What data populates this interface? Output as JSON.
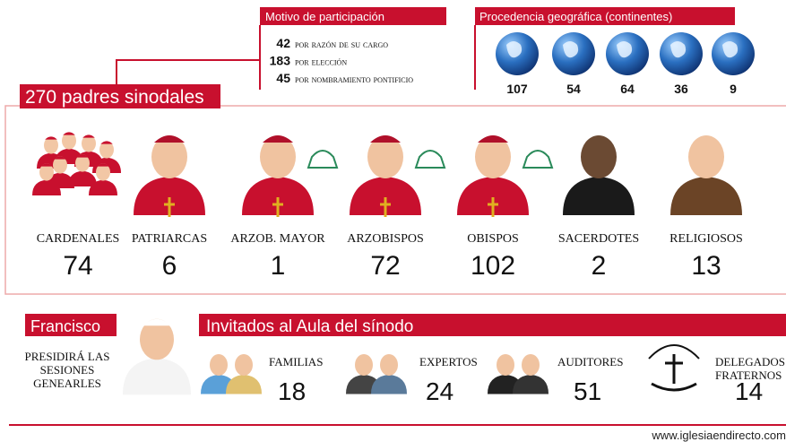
{
  "motivo": {
    "title": "Motivo de participación",
    "items": [
      {
        "number": 42,
        "label": "por razón de su cargo"
      },
      {
        "number": 183,
        "label": "por elección"
      },
      {
        "number": 45,
        "label": "por nombramiento pontificio"
      }
    ]
  },
  "procedencia": {
    "title": "Procedencia geográfica (continentes)",
    "values": [
      107,
      54,
      64,
      36,
      9
    ]
  },
  "padres": {
    "title": "270 padres sinodales",
    "groups": [
      {
        "label": "CARDENALES",
        "count": 74
      },
      {
        "label": "PATRIARCAS",
        "count": 6
      },
      {
        "label": "ARZOB. MAYOR",
        "count": 1
      },
      {
        "label": "ARZOBISPOS",
        "count": 72
      },
      {
        "label": "OBISPOS",
        "count": 102
      },
      {
        "label": "SACERDOTES",
        "count": 2
      },
      {
        "label": "RELIGIOSOS",
        "count": 13
      }
    ]
  },
  "francisco": {
    "title": "Francisco",
    "lines": [
      "PRESIDIRÁ LAS",
      "SESIONES",
      "GENEARLES"
    ]
  },
  "invitados": {
    "title": "Invitados al Aula del sínodo",
    "groups": [
      {
        "label": [
          "FAMILIAS"
        ],
        "count": 18
      },
      {
        "label": [
          "EXPERTOS"
        ],
        "count": 24
      },
      {
        "label": [
          "AUDITORES"
        ],
        "count": 51
      },
      {
        "label": [
          "DELEGADOS",
          "FRATERNOS"
        ],
        "count": 14
      }
    ]
  },
  "footer": "www.iglesiaendirecto.com"
}
